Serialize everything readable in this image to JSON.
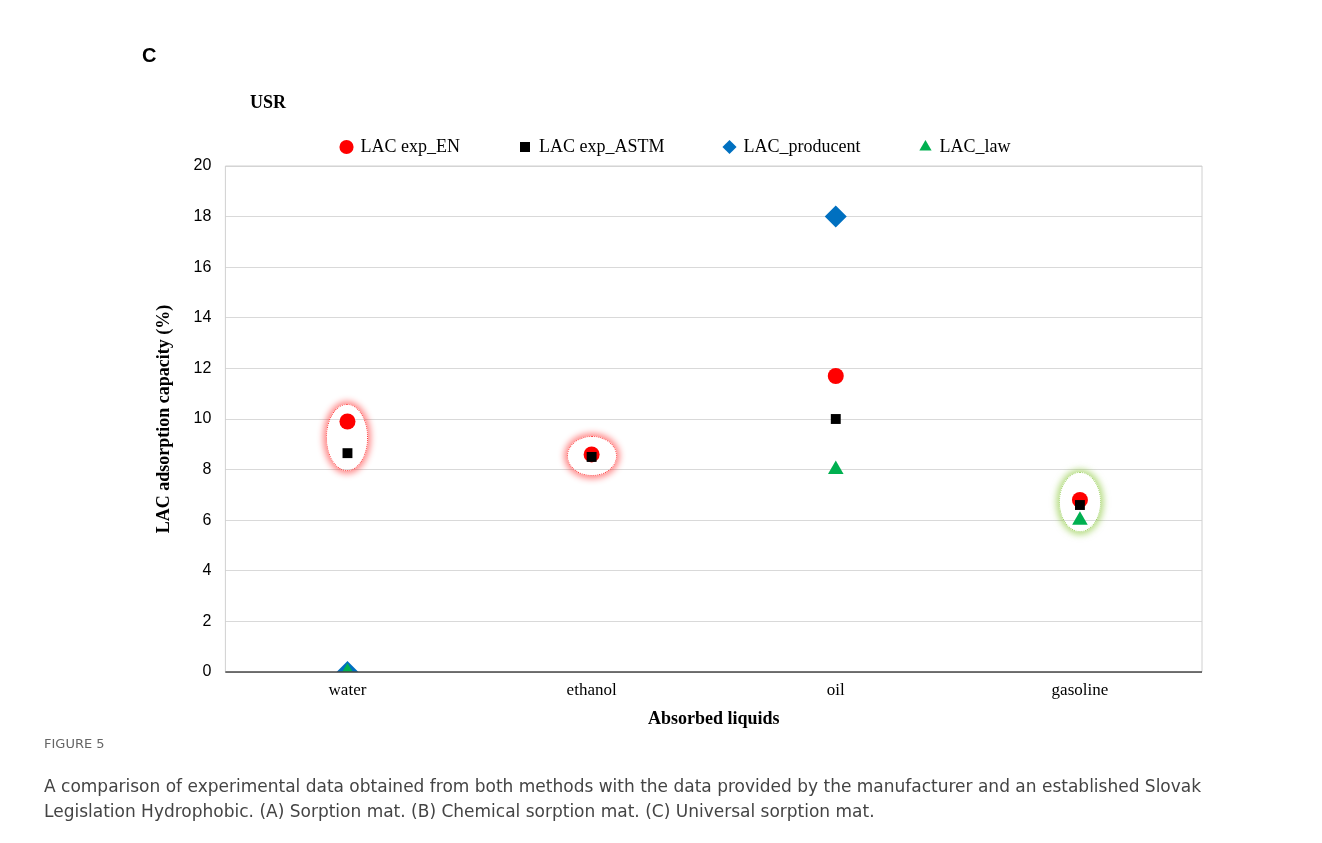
{
  "chart_data": {
    "type": "scatter",
    "xlabel": "Absorbed liquids",
    "ylabel": "LAC adsorption capacity (%)",
    "categories": [
      "water",
      "ethanol",
      "oil",
      "gasoline"
    ],
    "series": [
      {
        "name": "LAC exp_EN",
        "color": "#ff0000",
        "marker": "circle",
        "values": [
          9.9,
          8.6,
          11.7,
          6.8
        ]
      },
      {
        "name": "LAC exp_ASTM",
        "color": "#000000",
        "marker": "square",
        "values": [
          8.65,
          8.5,
          10.0,
          6.6
        ]
      },
      {
        "name": "LAC_producent",
        "color": "#0070c0",
        "marker": "diamond",
        "values": [
          0,
          null,
          18.0,
          null
        ]
      },
      {
        "name": "LAC_law",
        "color": "#00b050",
        "marker": "triangle",
        "values": [
          0,
          null,
          8.0,
          6.0
        ]
      }
    ],
    "ylim": [
      0,
      20
    ],
    "yticks": [
      0,
      2,
      4,
      6,
      8,
      10,
      12,
      14,
      16,
      18,
      20
    ],
    "grid": "y",
    "legend": "top",
    "annotations": [
      "C",
      "USR",
      "FIGURE 5",
      "A comparison of experimental data obtained from both methods with the data provided by the manufacturer and an established Slovak Legislation Hydrophobic. (A) Sorption mat. (B) Chemical sorption mat. (C) Universal sorption mat."
    ]
  }
}
